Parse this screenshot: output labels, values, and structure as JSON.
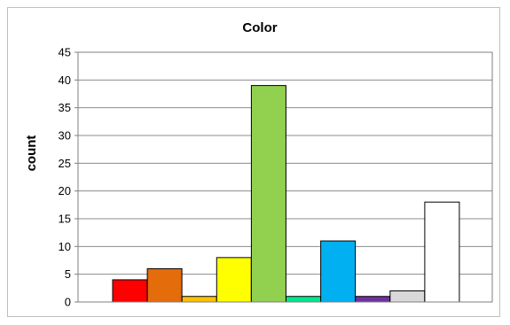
{
  "chart_data": {
    "type": "bar",
    "title": "Color",
    "xlabel": "",
    "ylabel": "count",
    "ylim": [
      0,
      45
    ],
    "yticks": [
      0,
      5,
      10,
      15,
      20,
      25,
      30,
      35,
      40,
      45
    ],
    "grid": true,
    "legend": "none",
    "categories": [
      "",
      "",
      "",
      "",
      "",
      "",
      "",
      "",
      "",
      ""
    ],
    "values": [
      4,
      6,
      1,
      8,
      39,
      1,
      11,
      1,
      2,
      18
    ],
    "colors": [
      "#ff0000",
      "#e46c0a",
      "#ffc000",
      "#ffff00",
      "#92d050",
      "#00e68c",
      "#00b0f0",
      "#7030a0",
      "#d9d9d9",
      "#ffffff"
    ]
  }
}
